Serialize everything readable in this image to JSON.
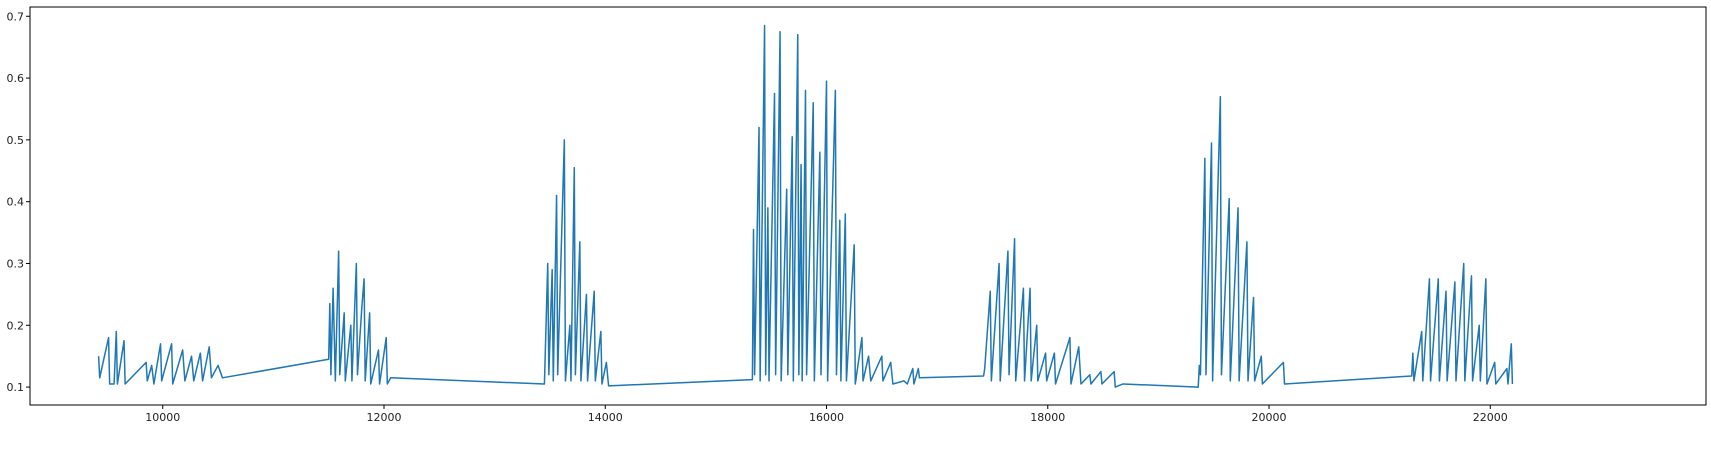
{
  "chart_data": {
    "type": "line",
    "color": "#1f77b4",
    "grid": false,
    "xlim": [
      8800,
      23950
    ],
    "ylim": [
      0.071,
      0.715
    ],
    "xticks": [
      10000,
      12000,
      14000,
      16000,
      18000,
      20000,
      22000
    ],
    "yticks": [
      0.1,
      0.2,
      0.3,
      0.4,
      0.5,
      0.6,
      0.7
    ],
    "x": [
      9420,
      9430,
      9510,
      9520,
      9560,
      9580,
      9590,
      9650,
      9660,
      9850,
      9860,
      9900,
      9920,
      9980,
      9990,
      10080,
      10090,
      10180,
      10200,
      10260,
      10280,
      10340,
      10360,
      10420,
      10440,
      10500,
      10540,
      11500,
      11510,
      11520,
      11540,
      11560,
      11590,
      11600,
      11640,
      11650,
      11700,
      11710,
      11750,
      11760,
      11800,
      11820,
      11830,
      11870,
      11880,
      11950,
      11960,
      12020,
      12030,
      12060,
      13450,
      13480,
      13490,
      13520,
      13530,
      13560,
      13570,
      13630,
      13640,
      13680,
      13690,
      13720,
      13730,
      13770,
      13780,
      13830,
      13840,
      13900,
      13910,
      13960,
      13970,
      14010,
      14030,
      15330,
      15340,
      15350,
      15390,
      15400,
      15440,
      15450,
      15470,
      15480,
      15530,
      15540,
      15580,
      15590,
      15640,
      15650,
      15690,
      15700,
      15740,
      15750,
      15770,
      15780,
      15810,
      15820,
      15880,
      15890,
      15940,
      15950,
      16000,
      16010,
      16080,
      16090,
      16120,
      16130,
      16170,
      16180,
      16250,
      16260,
      16320,
      16330,
      16380,
      16400,
      16500,
      16510,
      16580,
      16600,
      16700,
      16730,
      16780,
      16790,
      16830,
      16840,
      17420,
      17430,
      17480,
      17490,
      17560,
      17570,
      17640,
      17650,
      17700,
      17710,
      17780,
      17790,
      17840,
      17850,
      17900,
      17910,
      17980,
      17990,
      18060,
      18070,
      18200,
      18210,
      18280,
      18300,
      18380,
      18390,
      18480,
      18490,
      18600,
      18610,
      18680,
      19360,
      19370,
      19380,
      19420,
      19430,
      19480,
      19490,
      19560,
      19570,
      19640,
      19650,
      19720,
      19730,
      19800,
      19810,
      19860,
      19870,
      19930,
      19940,
      20130,
      20140,
      21290,
      21300,
      21310,
      21380,
      21390,
      21450,
      21460,
      21530,
      21540,
      21600,
      21610,
      21680,
      21690,
      21760,
      21770,
      21830,
      21840,
      21900,
      21910,
      21960,
      21970,
      22040,
      22050,
      22150,
      22160,
      22190,
      22200
    ],
    "values": [
      0.15,
      0.115,
      0.18,
      0.105,
      0.105,
      0.19,
      0.105,
      0.175,
      0.105,
      0.14,
      0.11,
      0.135,
      0.105,
      0.17,
      0.11,
      0.17,
      0.105,
      0.16,
      0.11,
      0.15,
      0.11,
      0.155,
      0.11,
      0.165,
      0.115,
      0.135,
      0.115,
      0.145,
      0.235,
      0.12,
      0.26,
      0.11,
      0.32,
      0.12,
      0.22,
      0.11,
      0.2,
      0.11,
      0.3,
      0.12,
      0.23,
      0.275,
      0.11,
      0.22,
      0.105,
      0.16,
      0.105,
      0.18,
      0.105,
      0.115,
      0.105,
      0.3,
      0.12,
      0.29,
      0.11,
      0.41,
      0.12,
      0.5,
      0.11,
      0.2,
      0.11,
      0.455,
      0.12,
      0.335,
      0.11,
      0.25,
      0.11,
      0.255,
      0.11,
      0.19,
      0.105,
      0.14,
      0.102,
      0.112,
      0.355,
      0.12,
      0.52,
      0.11,
      0.685,
      0.12,
      0.39,
      0.11,
      0.575,
      0.12,
      0.675,
      0.11,
      0.42,
      0.12,
      0.505,
      0.11,
      0.67,
      0.12,
      0.46,
      0.11,
      0.58,
      0.12,
      0.56,
      0.11,
      0.48,
      0.12,
      0.595,
      0.11,
      0.58,
      0.12,
      0.37,
      0.11,
      0.38,
      0.11,
      0.33,
      0.105,
      0.18,
      0.11,
      0.15,
      0.11,
      0.15,
      0.11,
      0.14,
      0.105,
      0.11,
      0.105,
      0.13,
      0.105,
      0.13,
      0.115,
      0.118,
      0.13,
      0.255,
      0.11,
      0.3,
      0.11,
      0.32,
      0.12,
      0.34,
      0.11,
      0.26,
      0.11,
      0.26,
      0.11,
      0.2,
      0.11,
      0.155,
      0.11,
      0.155,
      0.105,
      0.18,
      0.105,
      0.165,
      0.105,
      0.12,
      0.105,
      0.125,
      0.105,
      0.125,
      0.1,
      0.105,
      0.1,
      0.135,
      0.12,
      0.47,
      0.12,
      0.495,
      0.11,
      0.57,
      0.12,
      0.405,
      0.11,
      0.39,
      0.11,
      0.335,
      0.11,
      0.245,
      0.11,
      0.15,
      0.105,
      0.14,
      0.105,
      0.118,
      0.155,
      0.11,
      0.19,
      0.11,
      0.275,
      0.11,
      0.275,
      0.11,
      0.255,
      0.11,
      0.27,
      0.11,
      0.3,
      0.11,
      0.28,
      0.11,
      0.2,
      0.11,
      0.275,
      0.105,
      0.14,
      0.105,
      0.13,
      0.105,
      0.17,
      0.105
    ]
  }
}
